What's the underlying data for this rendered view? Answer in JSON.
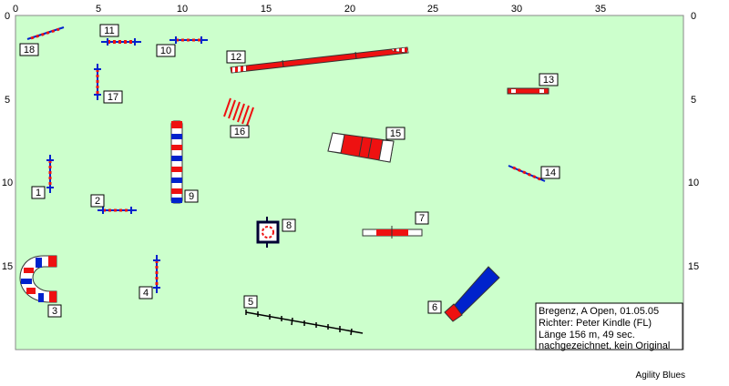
{
  "course": {
    "x_ticks": [
      "0",
      "5",
      "10",
      "15",
      "20",
      "25",
      "30",
      "35"
    ],
    "y_ticks": [
      "0",
      "5",
      "10",
      "15"
    ],
    "obstacles": [
      {
        "num": "1",
        "label": "1",
        "type": "hurdle"
      },
      {
        "num": "2",
        "label": "2",
        "type": "hurdle"
      },
      {
        "num": "3",
        "label": "3",
        "type": "tunnel"
      },
      {
        "num": "4",
        "label": "4",
        "type": "hurdle"
      },
      {
        "num": "5",
        "label": "5",
        "type": "weave-poles"
      },
      {
        "num": "6",
        "label": "6",
        "type": "collapsed-tunnel"
      },
      {
        "num": "7",
        "label": "7",
        "type": "seesaw"
      },
      {
        "num": "8",
        "label": "8",
        "type": "tire"
      },
      {
        "num": "9",
        "label": "9",
        "type": "tunnel"
      },
      {
        "num": "10",
        "label": "10",
        "type": "hurdle"
      },
      {
        "num": "11",
        "label": "11",
        "type": "hurdle"
      },
      {
        "num": "12",
        "label": "12",
        "type": "dog-walk"
      },
      {
        "num": "13",
        "label": "13",
        "type": "table"
      },
      {
        "num": "14",
        "label": "14",
        "type": "hurdle"
      },
      {
        "num": "15",
        "label": "15",
        "type": "a-frame"
      },
      {
        "num": "16",
        "label": "16",
        "type": "tunnel-entrance"
      },
      {
        "num": "17",
        "label": "17",
        "type": "hurdle"
      },
      {
        "num": "18",
        "label": "18",
        "type": "hurdle"
      }
    ],
    "info": {
      "line1": "Bregenz, A Open, 01.05.05",
      "line2": "Richter: Peter Kindle (FL)",
      "line3": "Länge 156 m, 49 sec.",
      "line4": "nachgezeichnet, kein Original"
    },
    "credit": "Agility Blues",
    "colors": {
      "field": "#ccffcc",
      "red": "#ee1111",
      "blue": "#0022cc",
      "dark": "#000033"
    }
  }
}
